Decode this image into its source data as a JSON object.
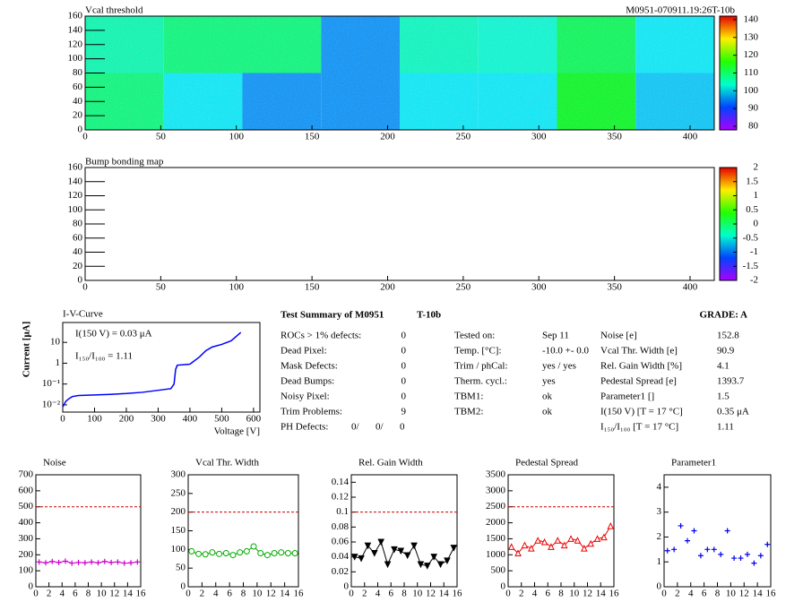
{
  "chart_data": [
    {
      "type": "heatmap",
      "title": "Vcal threshold",
      "label": "M0951-070911.19:26T-10b",
      "xlim": [
        0,
        416
      ],
      "ylim": [
        0,
        160
      ],
      "xticks": [
        0,
        50,
        100,
        150,
        200,
        250,
        300,
        350,
        400
      ],
      "yticks": [
        0,
        20,
        40,
        60,
        80,
        100,
        120,
        140,
        160
      ],
      "xbins": [
        0,
        52,
        104,
        156,
        208,
        260,
        312,
        364,
        416
      ],
      "ybins": [
        0,
        80,
        160
      ],
      "z": [
        [
          108,
          100,
          95,
          95,
          100,
          100,
          113,
          98
        ],
        [
          105,
          108,
          108,
          95,
          104,
          103,
          110,
          100
        ]
      ],
      "zlim": [
        78,
        142
      ],
      "zticks": [
        80,
        90,
        100,
        110,
        120,
        130,
        140
      ]
    },
    {
      "type": "heatmap",
      "title": "Bump bonding map",
      "xlim": [
        0,
        416
      ],
      "ylim": [
        0,
        160
      ],
      "xticks": [
        0,
        50,
        100,
        150,
        200,
        250,
        300,
        350,
        400
      ],
      "yticks": [
        0,
        20,
        40,
        60,
        80,
        100,
        120,
        140,
        160
      ],
      "zlim": [
        -2,
        2
      ],
      "zticks": [
        -2,
        -1.5,
        -1,
        -0.5,
        0,
        0.5,
        1,
        1.5,
        2
      ]
    },
    {
      "type": "line",
      "title": "I-V-Curve",
      "xlabel": "Voltage [V]",
      "ylabel": "Current [μA]",
      "log_y": true,
      "color": "#0000ff",
      "annotations": [
        "I(150 V) = 0.03 μA",
        "I₁₅₀/I₁₀₀ =  1.11"
      ],
      "xlim": [
        0,
        620
      ],
      "ylim": [
        0.0045,
        90
      ],
      "xticks": [
        0,
        100,
        200,
        300,
        400,
        500,
        600
      ],
      "yticks": [
        {
          "value": 0.01,
          "label": "10⁻²"
        },
        {
          "value": 0.1,
          "label": "10⁻¹"
        },
        1,
        10
      ],
      "x": [
        0,
        10,
        20,
        30,
        50,
        100,
        150,
        200,
        250,
        300,
        340,
        350,
        355,
        360,
        380,
        400,
        430,
        450,
        470,
        500,
        530,
        560
      ],
      "values": [
        0.008,
        0.015,
        0.02,
        0.025,
        0.028,
        0.03,
        0.032,
        0.035,
        0.04,
        0.05,
        0.06,
        0.1,
        0.5,
        0.8,
        0.85,
        0.9,
        2,
        4,
        6,
        8,
        12,
        30
      ]
    },
    {
      "type": "line",
      "title": "Noise",
      "color": "#cc00cc",
      "marker": "plus",
      "limit": 500,
      "xlim": [
        0,
        16
      ],
      "ylim": [
        0,
        700
      ],
      "xticks": [
        0,
        2,
        4,
        6,
        8,
        10,
        12,
        14,
        16
      ],
      "yticks": [
        0,
        100,
        200,
        300,
        400,
        500,
        600,
        700
      ],
      "x": [
        0.5,
        1.5,
        2.5,
        3.5,
        4.5,
        5.5,
        6.5,
        7.5,
        8.5,
        9.5,
        10.5,
        11.5,
        12.5,
        13.5,
        14.5,
        15.5
      ],
      "values": [
        155,
        150,
        158,
        152,
        160,
        148,
        152,
        150,
        155,
        150,
        158,
        152,
        155,
        148,
        150,
        155
      ]
    },
    {
      "type": "line",
      "title": "Vcal Thr. Width",
      "color": "#00aa00",
      "marker": "circle",
      "limit": 200,
      "xlim": [
        0,
        16
      ],
      "ylim": [
        0,
        300
      ],
      "xticks": [
        0,
        2,
        4,
        6,
        8,
        10,
        12,
        14,
        16
      ],
      "yticks": [
        0,
        50,
        100,
        150,
        200,
        250,
        300
      ],
      "x": [
        0.5,
        1.5,
        2.5,
        3.5,
        4.5,
        5.5,
        6.5,
        7.5,
        8.5,
        9.5,
        10.5,
        11.5,
        12.5,
        13.5,
        14.5,
        15.5
      ],
      "values": [
        95,
        88,
        87,
        92,
        88,
        90,
        85,
        92,
        95,
        108,
        90,
        85,
        90,
        92,
        90,
        90
      ]
    },
    {
      "type": "line",
      "title": "Rel. Gain Width",
      "color": "#000000",
      "marker": "triangle-down",
      "limit": 0.1,
      "xlim": [
        0,
        16
      ],
      "ylim": [
        0,
        0.15
      ],
      "xticks": [
        0,
        2,
        4,
        6,
        8,
        10,
        12,
        14,
        16
      ],
      "yticks": [
        0,
        0.02,
        0.04,
        0.06,
        0.08,
        0.1,
        0.12,
        0.14
      ],
      "x": [
        0.5,
        1.5,
        2.5,
        3.5,
        4.5,
        5.5,
        6.5,
        7.5,
        8.5,
        9.5,
        10.5,
        11.5,
        12.5,
        13.5,
        14.5,
        15.5
      ],
      "values": [
        0.04,
        0.038,
        0.055,
        0.045,
        0.06,
        0.03,
        0.05,
        0.048,
        0.042,
        0.055,
        0.03,
        0.028,
        0.04,
        0.03,
        0.035,
        0.052
      ]
    },
    {
      "type": "line",
      "title": "Pedestal Spread",
      "color": "#ee0000",
      "marker": "triangle",
      "limit": 2500,
      "xlim": [
        0,
        16
      ],
      "ylim": [
        0,
        3500
      ],
      "xticks": [
        0,
        2,
        4,
        6,
        8,
        10,
        12,
        14,
        16
      ],
      "yticks": [
        0,
        500,
        1000,
        1500,
        2000,
        2500,
        3000,
        3500
      ],
      "x": [
        0.5,
        1.5,
        2.5,
        3.5,
        4.5,
        5.5,
        6.5,
        7.5,
        8.5,
        9.5,
        10.5,
        11.5,
        12.5,
        13.5,
        14.5,
        15.5
      ],
      "values": [
        1250,
        1050,
        1300,
        1200,
        1450,
        1400,
        1250,
        1450,
        1300,
        1500,
        1450,
        1200,
        1350,
        1500,
        1550,
        1900
      ]
    },
    {
      "type": "scatter",
      "title": "Parameter1",
      "color": "#0000ee",
      "marker": "plus",
      "xlim": [
        0,
        16
      ],
      "ylim": [
        0,
        4.5
      ],
      "xticks": [
        0,
        2,
        4,
        6,
        8,
        10,
        12,
        14,
        16
      ],
      "yticks": [
        0,
        1,
        2,
        3,
        4
      ],
      "x": [
        0.5,
        1.5,
        2.5,
        3.5,
        4.5,
        5.5,
        6.5,
        7.5,
        8.5,
        9.5,
        10.5,
        11.5,
        12.5,
        13.5,
        14.5,
        15.5
      ],
      "values": [
        1.45,
        1.5,
        2.45,
        1.85,
        2.25,
        1.25,
        1.5,
        1.5,
        1.3,
        2.25,
        1.15,
        1.15,
        1.3,
        0.95,
        1.25,
        1.7
      ]
    }
  ],
  "summary": {
    "title": "Test Summary of M0951",
    "test": "T-10b",
    "grade": "GRADE:  A",
    "left": [
      [
        "ROCs > 1% defects:",
        "0"
      ],
      [
        "Dead Pixel:",
        "0"
      ],
      [
        "Mask Defects:",
        "0"
      ],
      [
        "Dead Bumps:",
        "0"
      ],
      [
        "Noisy Pixel:",
        "0"
      ],
      [
        "Trim Problems:",
        "9"
      ]
    ],
    "ph_label": "PH Defects:",
    "ph_values": [
      {
        "text": "0/",
        "color": "#000000"
      },
      {
        "text": "0/",
        "color": "#ee0000"
      },
      {
        "text": "0",
        "color": "#0000ee"
      }
    ],
    "middle": [
      [
        "Tested on:",
        "Sep 11"
      ],
      [
        "Temp. [°C]:",
        "-10.0 +- 0.0"
      ],
      [
        "Trim / phCal:",
        "yes / yes"
      ],
      [
        "Therm. cycl.:",
        "yes"
      ],
      [
        "TBM1:",
        "ok"
      ],
      [
        "TBM2:",
        "ok"
      ]
    ],
    "right": [
      [
        "Noise [e]",
        "152.8"
      ],
      [
        "Vcal Thr. Width [e]",
        "90.9"
      ],
      [
        "Rel. Gain Width [%]",
        "4.1"
      ],
      [
        "Pedestal Spread [e]",
        "1393.7"
      ],
      [
        "Parameter1 []",
        "1.5"
      ],
      [
        "I(150 V) [T = 17 °C]",
        "0.35 μA"
      ],
      [
        "I₁₅₀/I₁₀₀  [T = 17 °C]",
        "1.11"
      ]
    ]
  }
}
